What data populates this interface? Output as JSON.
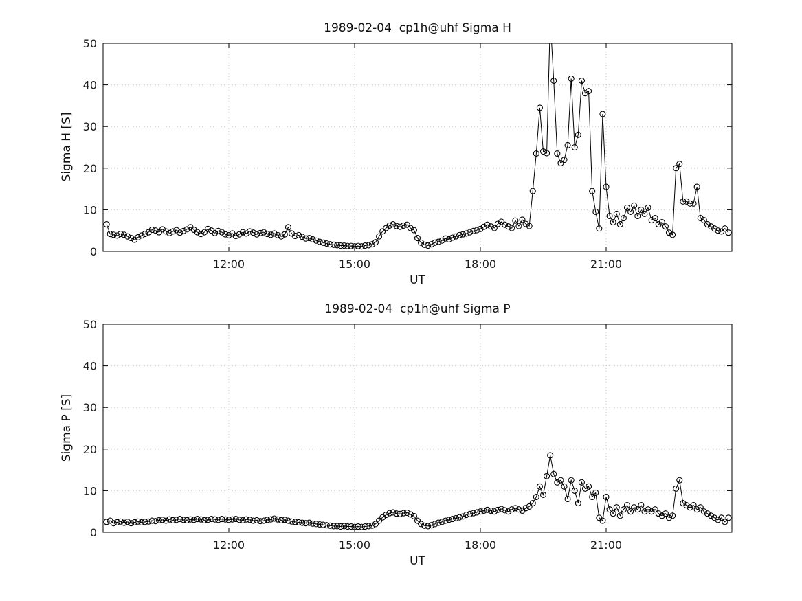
{
  "figure": {
    "background": "#ffffff",
    "axis_color": "#000000",
    "grid_color": "#c8c8c8",
    "line_color": "#000000",
    "marker": "open-circle"
  },
  "chart_data": [
    {
      "type": "line",
      "title": "1989-02-04  cp1h@uhf Sigma H",
      "xlabel": "UT",
      "ylabel": "Sigma H [S]",
      "xlim_hours": [
        9,
        24
      ],
      "ylim": [
        0,
        50
      ],
      "grid": true,
      "legend": "none",
      "xticks": [
        {
          "hour": 12,
          "label": "12:00"
        },
        {
          "hour": 15,
          "label": "15:00"
        },
        {
          "hour": 18,
          "label": "18:00"
        },
        {
          "hour": 21,
          "label": "21:00"
        }
      ],
      "yticks": [
        0,
        10,
        20,
        30,
        40,
        50
      ],
      "t_start_hours": 9.0833333,
      "t_step_hours": 0.0833333,
      "values": [
        6.5,
        4.2,
        4.0,
        3.8,
        4.2,
        4.0,
        3.6,
        3.2,
        2.8,
        3.4,
        3.8,
        4.2,
        4.6,
        5.2,
        5.0,
        4.6,
        5.3,
        4.8,
        4.4,
        4.8,
        5.1,
        4.5,
        4.9,
        5.3,
        5.8,
        5.2,
        4.6,
        4.2,
        4.6,
        5.4,
        5.0,
        4.4,
        4.9,
        4.6,
        4.1,
        3.9,
        4.3,
        3.7,
        4.1,
        4.6,
        4.3,
        4.8,
        4.5,
        4.1,
        4.4,
        4.6,
        4.2,
        4.0,
        4.3,
        3.9,
        3.6,
        4.1,
        5.8,
        4.3,
        3.7,
        3.9,
        3.5,
        3.1,
        3.2,
        2.9,
        2.6,
        2.3,
        2.1,
        1.9,
        1.7,
        1.6,
        1.5,
        1.4,
        1.4,
        1.3,
        1.3,
        1.2,
        1.3,
        1.2,
        1.4,
        1.5,
        1.7,
        2.2,
        3.6,
        4.8,
        5.6,
        6.2,
        6.5,
        6.1,
        5.9,
        6.2,
        6.4,
        5.6,
        5.1,
        3.2,
        2.1,
        1.6,
        1.4,
        1.7,
        2.1,
        2.3,
        2.6,
        3.1,
        2.9,
        3.3,
        3.6,
        3.9,
        4.1,
        4.3,
        4.6,
        4.9,
        5.1,
        5.4,
        5.9,
        6.4,
        6.0,
        5.6,
        6.6,
        7.1,
        6.4,
        6.0,
        5.6,
        7.4,
        6.1,
        7.6,
        6.6,
        6.1,
        14.5,
        23.5,
        34.5,
        24.0,
        23.6,
        56.0,
        41.0,
        23.5,
        21.2,
        22.0,
        25.5,
        41.5,
        25.0,
        28.0,
        41.0,
        38.0,
        38.5,
        14.5,
        9.5,
        5.5,
        33.0,
        15.5,
        8.5,
        7.0,
        9.0,
        6.5,
        8.0,
        10.5,
        9.5,
        11.0,
        8.5,
        10.0,
        9.0,
        10.5,
        7.5,
        8.0,
        6.5,
        7.0,
        6.0,
        4.5,
        4.0,
        20.0,
        21.0,
        12.0,
        12.0,
        11.5,
        11.5,
        15.5,
        8.0,
        7.5,
        6.5,
        6.0,
        5.5,
        5.0,
        4.8,
        5.5,
        4.5
      ]
    },
    {
      "type": "line",
      "title": "1989-02-04  cp1h@uhf Sigma P",
      "xlabel": "UT",
      "ylabel": "Sigma P [S]",
      "xlim_hours": [
        9,
        24
      ],
      "ylim": [
        0,
        50
      ],
      "grid": true,
      "legend": "none",
      "xticks": [
        {
          "hour": 12,
          "label": "12:00"
        },
        {
          "hour": 15,
          "label": "15:00"
        },
        {
          "hour": 18,
          "label": "18:00"
        },
        {
          "hour": 21,
          "label": "21:00"
        }
      ],
      "yticks": [
        0,
        10,
        20,
        30,
        40,
        50
      ],
      "t_start_hours": 9.0833333,
      "t_step_hours": 0.0833333,
      "values": [
        2.5,
        2.8,
        2.2,
        2.4,
        2.6,
        2.3,
        2.5,
        2.2,
        2.4,
        2.6,
        2.4,
        2.5,
        2.6,
        2.8,
        2.7,
        2.9,
        3.0,
        2.8,
        3.1,
        2.9,
        3.0,
        3.2,
        3.0,
        2.9,
        3.1,
        3.0,
        3.2,
        3.1,
        2.9,
        3.0,
        3.2,
        3.1,
        3.0,
        3.2,
        3.1,
        3.0,
        3.1,
        3.2,
        3.0,
        2.9,
        3.1,
        3.0,
        2.8,
        2.9,
        2.7,
        2.8,
        3.0,
        3.1,
        3.3,
        3.1,
        2.9,
        3.0,
        2.8,
        2.6,
        2.5,
        2.4,
        2.3,
        2.2,
        2.3,
        2.1,
        2.0,
        1.9,
        1.8,
        1.7,
        1.6,
        1.5,
        1.5,
        1.4,
        1.5,
        1.4,
        1.4,
        1.3,
        1.4,
        1.3,
        1.4,
        1.5,
        1.6,
        2.0,
        2.8,
        3.6,
        4.2,
        4.6,
        4.8,
        4.5,
        4.4,
        4.6,
        4.7,
        4.3,
        3.9,
        2.8,
        2.0,
        1.6,
        1.5,
        1.7,
        2.0,
        2.3,
        2.5,
        2.8,
        3.0,
        3.2,
        3.4,
        3.6,
        3.8,
        4.2,
        4.4,
        4.6,
        4.8,
        5.0,
        5.2,
        5.4,
        5.2,
        5.0,
        5.4,
        5.6,
        5.3,
        5.0,
        5.5,
        5.8,
        5.5,
        5.2,
        5.8,
        6.2,
        7.0,
        8.5,
        11.0,
        9.0,
        13.5,
        18.5,
        14.0,
        12.0,
        12.5,
        11.0,
        8.0,
        12.5,
        10.0,
        7.0,
        12.0,
        10.5,
        11.0,
        8.5,
        9.5,
        3.5,
        2.8,
        8.5,
        5.5,
        4.5,
        6.0,
        4.0,
        5.5,
        6.5,
        5.0,
        6.0,
        5.5,
        6.5,
        5.0,
        5.5,
        5.0,
        5.5,
        4.5,
        4.0,
        4.5,
        3.5,
        4.0,
        10.5,
        12.5,
        7.0,
        6.5,
        6.0,
        6.5,
        5.5,
        6.0,
        5.0,
        4.5,
        4.0,
        3.5,
        3.0,
        3.5,
        2.5,
        3.5
      ]
    }
  ]
}
